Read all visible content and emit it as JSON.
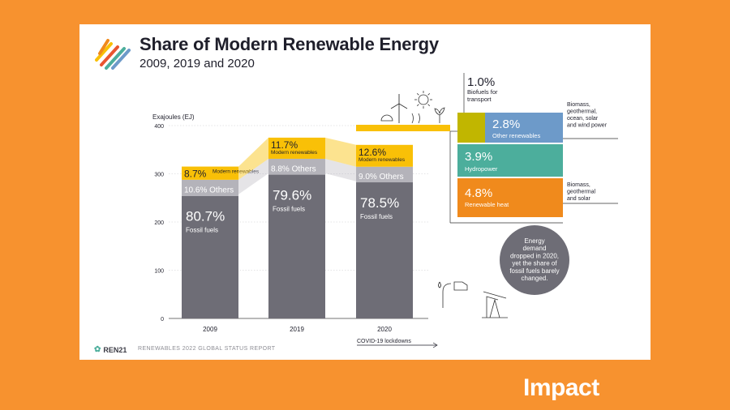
{
  "header": {
    "title": "Share of Modern Renewable Energy",
    "subtitle": "2009, 2019 and 2020"
  },
  "footer": {
    "brand": "REN21",
    "report": "RENEWABLES 2022 GLOBAL STATUS REPORT"
  },
  "badge": {
    "brand": "Impact"
  },
  "colors": {
    "fossil": "#6e6d76",
    "others": "#b4b3ba",
    "modern": "#f9c007",
    "biofuels": "#c1b600",
    "other_renewables": "#6d9ac9",
    "hydropower": "#4cae9c",
    "renewable_heat": "#f08a1c",
    "note": "#6e6d76"
  },
  "chart_data": {
    "type": "bar",
    "ylabel": "Exajoules (EJ)",
    "ylim": [
      0,
      400
    ],
    "yticks": [
      "0",
      "100",
      "200",
      "300",
      "400"
    ],
    "categories": [
      "2009",
      "2019",
      "2020"
    ],
    "totals": [
      315,
      375,
      360
    ],
    "series": [
      {
        "name": "Fossil fuels",
        "values": [
          80.7,
          79.6,
          78.5
        ],
        "labels": [
          "80.7%",
          "79.6%",
          "78.5%"
        ]
      },
      {
        "name": "Others",
        "values": [
          10.6,
          8.8,
          9.0
        ],
        "labels": [
          "10.6%",
          "8.8%",
          "9.0%"
        ]
      },
      {
        "name": "Modern renewables",
        "values": [
          8.7,
          11.7,
          12.6
        ],
        "labels": [
          "8.7%",
          "11.7%",
          "12.6%"
        ]
      }
    ],
    "annotation_2020": "COVID-19 lockdowns",
    "breakdown_2020": [
      {
        "name": "Biofuels for transport",
        "value": 1.0,
        "label": "1.0%",
        "note": ""
      },
      {
        "name": "Other renewables",
        "value": 2.8,
        "label": "2.8%",
        "note": "Biomass, geothermal, ocean, solar and wind power"
      },
      {
        "name": "Hydropower",
        "value": 3.9,
        "label": "3.9%",
        "note": ""
      },
      {
        "name": "Renewable heat",
        "value": 4.8,
        "label": "4.8%",
        "note": "Biomass, geothermal and solar"
      }
    ],
    "note": "Energy demand dropped in 2020, yet the share of fossil fuels barely changed."
  }
}
